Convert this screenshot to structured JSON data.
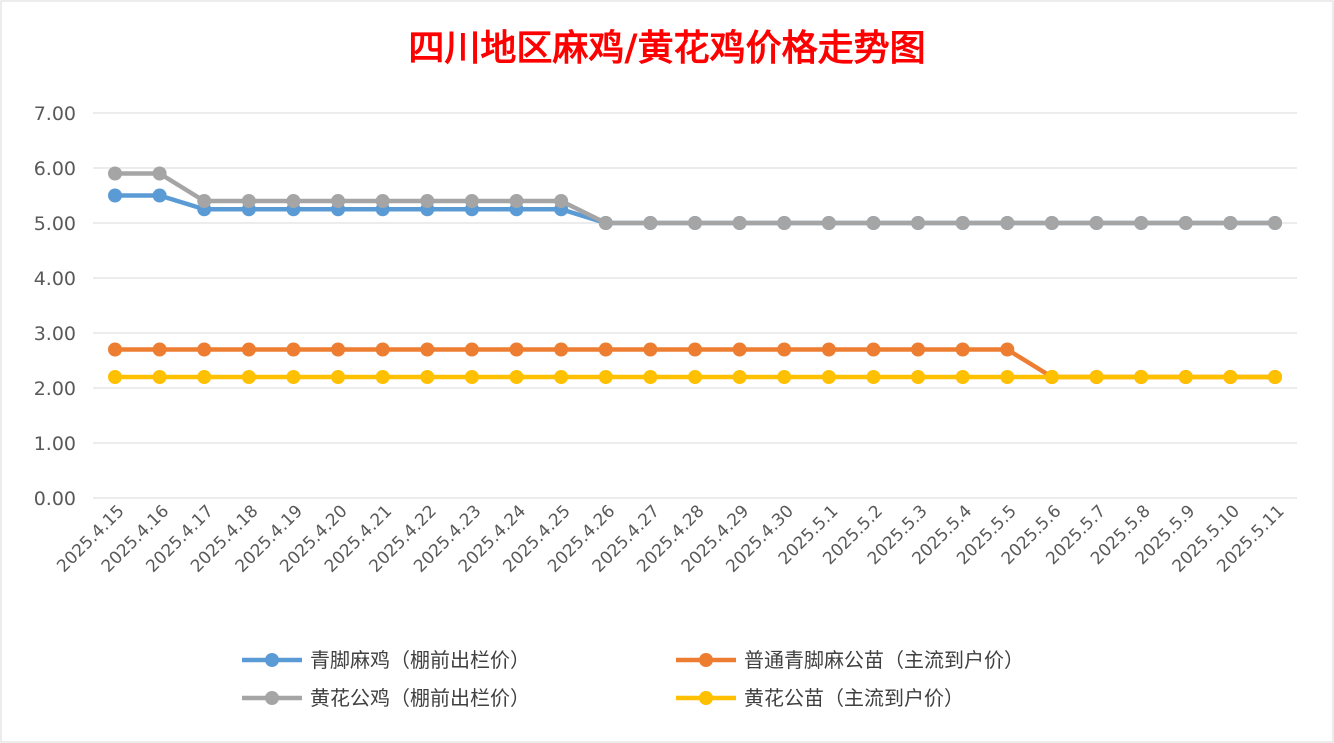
{
  "chart_data": {
    "type": "line",
    "title": "四川地区麻鸡/黄花鸡价格走势图",
    "xlabel": "",
    "ylabel": "",
    "ylim": [
      0,
      7
    ],
    "y_ticks": [
      "0.00",
      "1.00",
      "2.00",
      "3.00",
      "4.00",
      "5.00",
      "6.00",
      "7.00"
    ],
    "grid": true,
    "legend_position": "bottom",
    "categories": [
      "2025.4.15",
      "2025.4.16",
      "2025.4.17",
      "2025.4.18",
      "2025.4.19",
      "2025.4.20",
      "2025.4.21",
      "2025.4.22",
      "2025.4.23",
      "2025.4.24",
      "2025.4.25",
      "2025.4.26",
      "2025.4.27",
      "2025.4.28",
      "2025.4.29",
      "2025.4.30",
      "2025.5.1",
      "2025.5.2",
      "2025.5.3",
      "2025.5.4",
      "2025.5.5",
      "2025.5.6",
      "2025.5.7",
      "2025.5.8",
      "2025.5.9",
      "2025.5.10",
      "2025.5.11"
    ],
    "series": [
      {
        "name": "青脚麻鸡（棚前出栏价）",
        "color": "#5b9bd5",
        "values": [
          5.5,
          5.5,
          5.25,
          5.25,
          5.25,
          5.25,
          5.25,
          5.25,
          5.25,
          5.25,
          5.25,
          5,
          5,
          5,
          5,
          5,
          5,
          5,
          5,
          5,
          5,
          5,
          5,
          5,
          5,
          5,
          5
        ]
      },
      {
        "name": "普通青脚麻公苗（主流到户价）",
        "color": "#ed7d31",
        "values": [
          2.7,
          2.7,
          2.7,
          2.7,
          2.7,
          2.7,
          2.7,
          2.7,
          2.7,
          2.7,
          2.7,
          2.7,
          2.7,
          2.7,
          2.7,
          2.7,
          2.7,
          2.7,
          2.7,
          2.7,
          2.7,
          2.2,
          2.2,
          2.2,
          2.2,
          2.2,
          2.2
        ]
      },
      {
        "name": "黄花公鸡（棚前出栏价）",
        "color": "#a5a5a5",
        "values": [
          5.9,
          5.9,
          5.4,
          5.4,
          5.4,
          5.4,
          5.4,
          5.4,
          5.4,
          5.4,
          5.4,
          5,
          5,
          5,
          5,
          5,
          5,
          5,
          5,
          5,
          5,
          5,
          5,
          5,
          5,
          5,
          5
        ]
      },
      {
        "name": "黄花公苗（主流到户价）",
        "color": "#ffc000",
        "values": [
          2.2,
          2.2,
          2.2,
          2.2,
          2.2,
          2.2,
          2.2,
          2.2,
          2.2,
          2.2,
          2.2,
          2.2,
          2.2,
          2.2,
          2.2,
          2.2,
          2.2,
          2.2,
          2.2,
          2.2,
          2.2,
          2.2,
          2.2,
          2.2,
          2.2,
          2.2,
          2.2
        ]
      }
    ],
    "legend_order": [
      0,
      1,
      2,
      3
    ]
  }
}
